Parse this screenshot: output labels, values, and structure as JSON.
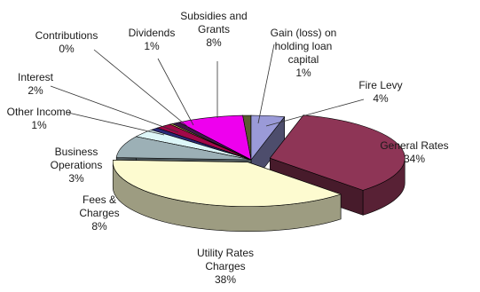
{
  "chart_data": {
    "type": "pie",
    "style": "3d-exploded",
    "title": "",
    "slices": [
      {
        "label": [
          "Fire Levy",
          "4%"
        ],
        "value": 4,
        "color": "#9a9ad8"
      },
      {
        "label": [
          "General Rates",
          "34%"
        ],
        "value": 34,
        "color": "#8e3556"
      },
      {
        "label": [
          "Utility Rates",
          "Charges",
          "38%"
        ],
        "value": 38,
        "color": "#fdfbd0"
      },
      {
        "label": [
          "Fees &",
          "Charges",
          "8%"
        ],
        "value": 8,
        "color": "#9cb0b6"
      },
      {
        "label": [
          "Business",
          "Operations",
          "3%"
        ],
        "value": 3,
        "color": "#ddf6f8"
      },
      {
        "label": [
          "Other Income",
          "1%"
        ],
        "value": 1,
        "color": "#2a2a78"
      },
      {
        "label": [
          "Interest",
          "2%"
        ],
        "value": 2,
        "color": "#a10849"
      },
      {
        "label": [
          "Contributions",
          "0%"
        ],
        "value": 0.3,
        "color": "#ebe36a"
      },
      {
        "label": [
          "Dividends",
          "1%"
        ],
        "value": 1,
        "color": "#3c1a48"
      },
      {
        "label": [
          "Subsidies and",
          "Grants",
          "8%"
        ],
        "value": 8,
        "color": "#ee00ee"
      },
      {
        "label": [
          "Gain (loss) on",
          "holding loan",
          "capital",
          "1%"
        ],
        "value": 1,
        "color": "#5a5a30"
      }
    ]
  }
}
